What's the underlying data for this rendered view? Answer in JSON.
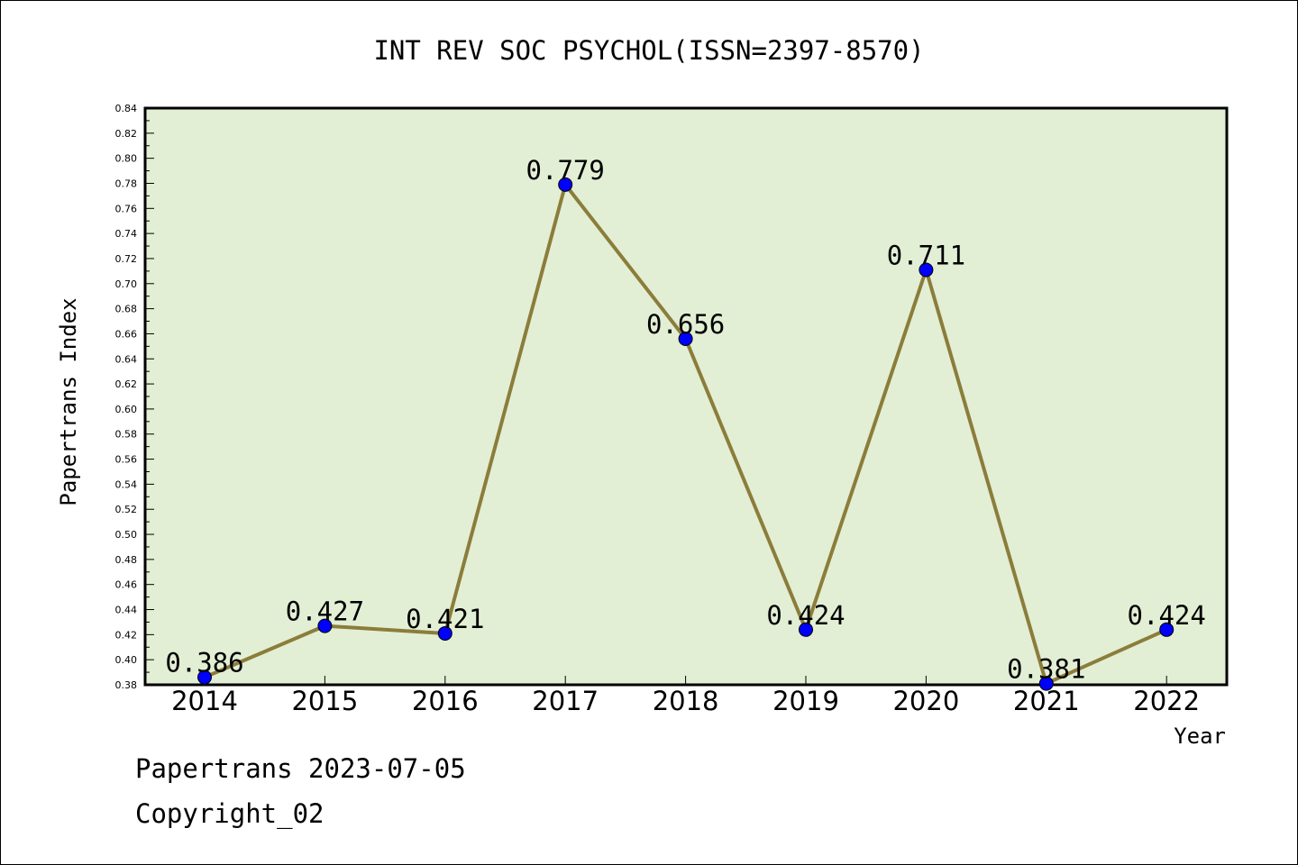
{
  "chart_data": {
    "type": "line",
    "title": "INT REV SOC PSYCHOL(ISSN=2397-8570)",
    "xlabel": "Year",
    "ylabel": "Papertrans Index",
    "categories": [
      "2014",
      "2015",
      "2016",
      "2017",
      "2018",
      "2019",
      "2020",
      "2021",
      "2022"
    ],
    "values": [
      0.386,
      0.427,
      0.421,
      0.779,
      0.656,
      0.424,
      0.711,
      0.381,
      0.424
    ],
    "data_labels": [
      "0.386",
      "0.427",
      "0.421",
      "0.779",
      "0.656",
      "0.424",
      "0.711",
      "0.381",
      "0.424"
    ],
    "ylim": [
      0.38,
      0.84
    ],
    "yticks": [
      "0.38",
      "0.40",
      "0.42",
      "0.44",
      "0.46",
      "0.48",
      "0.50",
      "0.52",
      "0.54",
      "0.56",
      "0.58",
      "0.60",
      "0.62",
      "0.64",
      "0.66",
      "0.68",
      "0.70",
      "0.72",
      "0.74",
      "0.76",
      "0.78",
      "0.80",
      "0.82",
      "0.84"
    ],
    "grid": false,
    "legend": "none",
    "colors": {
      "plot_background": "#e2efd5",
      "line": "#8b7d3a",
      "marker": "#0000ff"
    }
  },
  "footer": {
    "date_line": "Papertrans 2023-07-05",
    "copyright": "Copyright_02"
  }
}
